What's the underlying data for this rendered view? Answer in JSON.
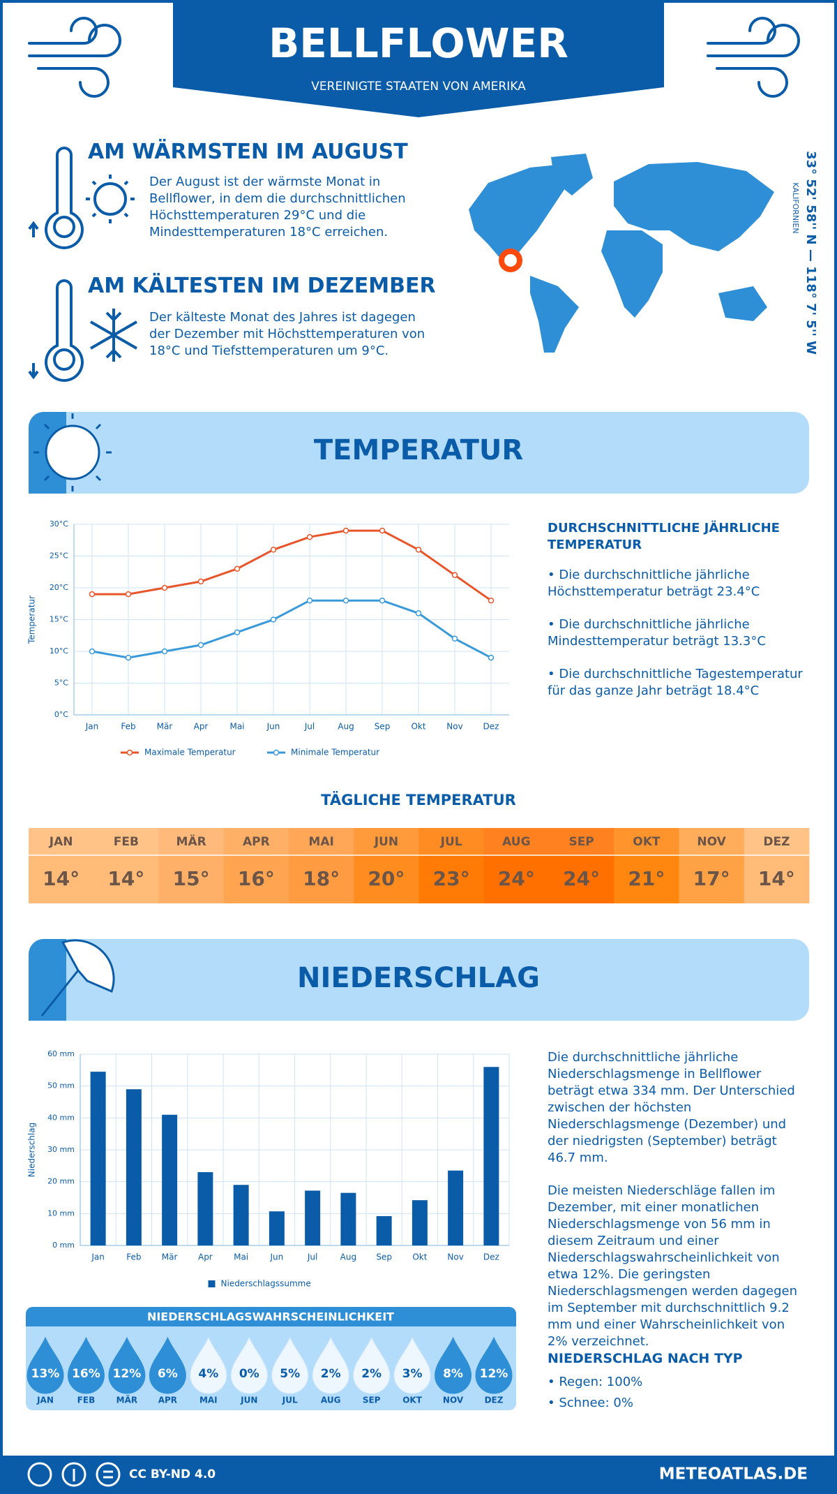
{
  "header": {
    "title": "BELLFLOWER",
    "subtitle": "VEREINIGTE STAATEN VON AMERIKA"
  },
  "warmest": {
    "title": "AM WÄRMSTEN IM AUGUST",
    "text": "Der August ist der wärmste Monat in Bellflower, in dem die durchschnittlichen Höchsttemperaturen 29°C und die Mindesttemperaturen 18°C erreichen."
  },
  "coldest": {
    "title": "AM KÄLTESTEN IM DEZEMBER",
    "text": "Der kälteste Monat des Jahres ist dagegen der Dezember mit Höchsttemperaturen von 18°C und Tiefsttemperaturen um 9°C."
  },
  "location": {
    "coordinates": "33° 52' 58'' N — 118° 7' 5'' W",
    "region": "KALIFORNIEN"
  },
  "temperature_section": {
    "title": "TEMPERATUR",
    "summary_title": "DURCHSCHNITTLICHE JÄHRLICHE TEMPERATUR",
    "bullets": [
      "• Die durchschnittliche jährliche Höchsttemperatur beträgt 23.4°C",
      "• Die durchschnittliche jährliche Mindesttemperatur beträgt 13.3°C",
      "• Die durchschnittliche Tagestemperatur für das ganze Jahr beträgt 18.4°C"
    ]
  },
  "daily_temperature": {
    "title": "TÄGLICHE TEMPERATUR",
    "months": [
      "JAN",
      "FEB",
      "MÄR",
      "APR",
      "MAI",
      "JUN",
      "JUL",
      "AUG",
      "SEP",
      "OKT",
      "NOV",
      "DEZ"
    ],
    "values": [
      "14°",
      "14°",
      "15°",
      "16°",
      "18°",
      "20°",
      "23°",
      "24°",
      "24°",
      "21°",
      "17°",
      "14°"
    ],
    "colors": [
      "#ffbb77",
      "#ffbb77",
      "#ffb068",
      "#ffa552",
      "#ff9b40",
      "#ff8c1f",
      "#ff7b05",
      "#ff7000",
      "#ff7000",
      "#ff860f",
      "#ffa145",
      "#ffbb77"
    ]
  },
  "precipitation_section": {
    "title": "NIEDERSCHLAG",
    "paragraphs": [
      "Die durchschnittliche jährliche Niederschlagsmenge in Bellflower beträgt etwa 334 mm. Der Unterschied zwischen der höchsten Niederschlagsmenge (Dezember) und der niedrigsten (September) beträgt 46.7 mm.",
      "Die meisten Niederschläge fallen im Dezember, mit einer monatlichen Niederschlagsmenge von 56 mm in diesem Zeitraum und einer Niederschlagswahrscheinlichkeit von etwa 12%. Die geringsten Niederschlagsmengen werden dagegen im September mit durchschnittlich 9.2 mm und einer Wahrscheinlichkeit von 2% verzeichnet."
    ],
    "type_title": "NIEDERSCHLAG NACH TYP",
    "type_bullets": [
      "• Regen: 100%",
      "• Schnee: 0%"
    ]
  },
  "probability": {
    "title": "NIEDERSCHLAGSWAHRSCHEINLICHKEIT",
    "months": [
      "JAN",
      "FEB",
      "MÄR",
      "APR",
      "MAI",
      "JUN",
      "JUL",
      "AUG",
      "SEP",
      "OKT",
      "NOV",
      "DEZ"
    ],
    "values": [
      "13%",
      "16%",
      "12%",
      "6%",
      "4%",
      "0%",
      "5%",
      "2%",
      "2%",
      "3%",
      "8%",
      "12%"
    ],
    "colors": [
      "#2e8fd6",
      "#2e8fd6",
      "#2e8fd6",
      "#2e8fd6",
      "#eef6fe",
      "#eef6fe",
      "#eef6fe",
      "#eef6fe",
      "#eef6fe",
      "#eef6fe",
      "#2e8fd6",
      "#2e8fd6"
    ]
  },
  "footer": {
    "license": "CC BY-ND 4.0",
    "site": "METEOATLAS.DE"
  },
  "chart_data": [
    {
      "type": "line",
      "ylabel": "Temperatur",
      "categories": [
        "Jan",
        "Feb",
        "Mär",
        "Apr",
        "Mai",
        "Jun",
        "Jul",
        "Aug",
        "Sep",
        "Okt",
        "Nov",
        "Dez"
      ],
      "series": [
        {
          "name": "Maximale Temperatur",
          "color": "#e8552a",
          "values": [
            19,
            19,
            20,
            21,
            23,
            26,
            28,
            29,
            29,
            26,
            22,
            18
          ]
        },
        {
          "name": "Minimale Temperatur",
          "color": "#3a9ad9",
          "values": [
            10,
            9,
            10,
            11,
            13,
            15,
            18,
            18,
            18,
            16,
            12,
            9
          ]
        }
      ],
      "ylim": [
        0,
        30
      ],
      "yticks": [
        {
          "value": 0,
          "label": "0°C"
        },
        {
          "value": 5,
          "label": "5°C"
        },
        {
          "value": 10,
          "label": "10°C"
        },
        {
          "value": 15,
          "label": "15°C"
        },
        {
          "value": 20,
          "label": "20°C"
        },
        {
          "value": 25,
          "label": "25°C"
        },
        {
          "value": 30,
          "label": "30°C"
        }
      ],
      "grid": true
    },
    {
      "type": "bar",
      "ylabel": "Niederschlag",
      "categories": [
        "Jan",
        "Feb",
        "Mär",
        "Apr",
        "Mai",
        "Jun",
        "Jul",
        "Aug",
        "Sep",
        "Okt",
        "Nov",
        "Dez"
      ],
      "series": [
        {
          "name": "Niederschlagssumme",
          "color": "#0b5ca8",
          "values": [
            54.5,
            49,
            41,
            23,
            19,
            10.7,
            17.2,
            16.5,
            9.2,
            14.2,
            23.5,
            56
          ]
        }
      ],
      "ylim": [
        0,
        60
      ],
      "yticks": [
        {
          "value": 0,
          "label": "0 mm"
        },
        {
          "value": 10,
          "label": "10 mm"
        },
        {
          "value": 20,
          "label": "20 mm"
        },
        {
          "value": 30,
          "label": "30 mm"
        },
        {
          "value": 40,
          "label": "40 mm"
        },
        {
          "value": 50,
          "label": "50 mm"
        },
        {
          "value": 60,
          "label": "60 mm"
        }
      ],
      "grid": true
    }
  ]
}
